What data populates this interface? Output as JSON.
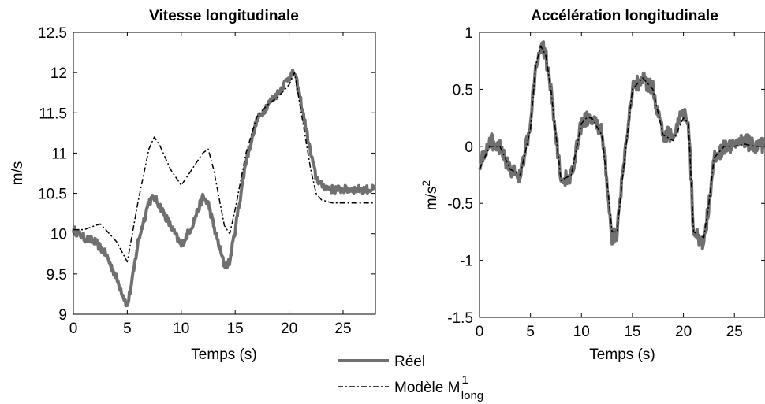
{
  "chart_data": [
    {
      "type": "line",
      "title": "Vitesse longitudinale",
      "xlabel": "Temps (s)",
      "ylabel": "m/s",
      "xlim": [
        0,
        28
      ],
      "ylim": [
        9,
        12.5
      ],
      "xticks": [
        "0",
        "5",
        "10",
        "15",
        "20",
        "25"
      ],
      "yticks": [
        "9",
        "9.5",
        "10",
        "10.5",
        "11",
        "11.5",
        "12",
        "12.5"
      ],
      "grid": false,
      "series": [
        {
          "name": "Réel",
          "style": "solid-thick",
          "color": "#707070",
          "x": [
            0,
            1,
            2,
            3,
            4,
            5,
            5.5,
            6,
            7,
            7.5,
            8,
            9,
            10,
            11,
            12,
            12.5,
            13,
            14,
            14.5,
            15,
            16,
            17,
            18,
            19,
            20,
            20.5,
            21,
            22,
            22.5,
            23,
            24,
            25,
            26,
            27,
            28
          ],
          "y": [
            10.05,
            9.95,
            9.9,
            9.75,
            9.45,
            9.1,
            9.45,
            9.9,
            10.4,
            10.45,
            10.35,
            10.1,
            9.85,
            10.1,
            10.45,
            10.38,
            10.1,
            9.6,
            9.65,
            10.05,
            10.9,
            11.4,
            11.6,
            11.75,
            11.95,
            12.0,
            11.7,
            11.0,
            10.7,
            10.6,
            10.55,
            10.55,
            10.55,
            10.55,
            10.55
          ],
          "noise": 0.05
        },
        {
          "name": "Modèle",
          "style": "dash-dot",
          "color": "#000000",
          "x": [
            0,
            1,
            2,
            2.5,
            3,
            4,
            5,
            6,
            7,
            7.5,
            8,
            9,
            10,
            11,
            12,
            12.5,
            13,
            14,
            14.5,
            15,
            16,
            17,
            18,
            19,
            20,
            20.5,
            21,
            22,
            22.5,
            23,
            24,
            25,
            26,
            27,
            28
          ],
          "y": [
            10.05,
            10.05,
            10.1,
            10.12,
            10.05,
            9.9,
            9.65,
            10.4,
            11.05,
            11.2,
            11.1,
            10.8,
            10.6,
            10.8,
            11.0,
            11.05,
            10.8,
            10.1,
            10.0,
            10.3,
            11.0,
            11.45,
            11.6,
            11.7,
            11.85,
            12.0,
            11.6,
            10.8,
            10.5,
            10.42,
            10.38,
            10.38,
            10.38,
            10.38,
            10.38
          ]
        }
      ]
    },
    {
      "type": "line",
      "title": "Accélération longitudinale",
      "xlabel": "Temps (s)",
      "ylabel": "m/s",
      "ylabel_sup": "2",
      "xlim": [
        0,
        28
      ],
      "ylim": [
        -1.5,
        1
      ],
      "xticks": [
        "0",
        "5",
        "10",
        "15",
        "20",
        "25"
      ],
      "yticks": [
        "-1.5",
        "-1",
        "-0.5",
        "0",
        "0.5",
        "1"
      ],
      "grid": false,
      "series": [
        {
          "name": "Réel",
          "style": "solid-thick",
          "color": "#707070",
          "x": [
            0,
            1,
            2,
            3,
            4,
            5,
            5.5,
            6,
            6.5,
            7,
            8,
            9,
            10,
            10.5,
            11,
            12,
            12.5,
            13,
            13.5,
            14,
            15,
            16,
            17,
            18,
            19,
            20,
            20.5,
            21,
            22,
            22.5,
            23,
            24,
            25,
            26,
            27,
            28
          ],
          "y": [
            -0.15,
            0.05,
            0.0,
            -0.2,
            -0.25,
            0.2,
            0.7,
            0.9,
            0.8,
            0.5,
            -0.3,
            -0.25,
            0.2,
            0.25,
            0.25,
            0.15,
            -0.3,
            -0.8,
            -0.75,
            -0.3,
            0.5,
            0.6,
            0.5,
            0.1,
            0.1,
            0.3,
            0.2,
            -0.75,
            -0.85,
            -0.5,
            -0.1,
            0.0,
            0.0,
            0.05,
            0.0,
            0.0
          ],
          "noise": 0.07
        },
        {
          "name": "Modèle",
          "style": "dash-dot",
          "color": "#000000",
          "x": [
            0,
            1,
            2,
            3,
            4,
            5,
            5.5,
            6,
            6.5,
            7,
            8,
            9,
            10,
            10.5,
            11,
            12,
            12.5,
            13,
            13.5,
            14,
            15,
            16,
            17,
            18,
            19,
            20,
            20.5,
            21,
            22,
            22.5,
            23,
            24,
            25,
            26,
            27,
            28
          ],
          "y": [
            -0.2,
            0.0,
            0.0,
            -0.2,
            -0.25,
            0.15,
            0.7,
            0.88,
            0.8,
            0.5,
            -0.3,
            -0.25,
            0.2,
            0.25,
            0.25,
            0.1,
            -0.3,
            -0.75,
            -0.75,
            -0.3,
            0.5,
            0.6,
            0.5,
            0.1,
            0.05,
            0.25,
            0.2,
            -0.75,
            -0.8,
            -0.5,
            -0.1,
            0.0,
            0.0,
            0.02,
            0.0,
            0.0
          ]
        }
      ]
    }
  ],
  "legend": {
    "placement": "bottom-center",
    "items": [
      {
        "label": "Réel",
        "style": "solid-thick",
        "color": "#707070"
      },
      {
        "label": "Modèle M",
        "sup": "1",
        "sub": "long",
        "style": "dash-dot",
        "color": "#000000"
      }
    ]
  }
}
